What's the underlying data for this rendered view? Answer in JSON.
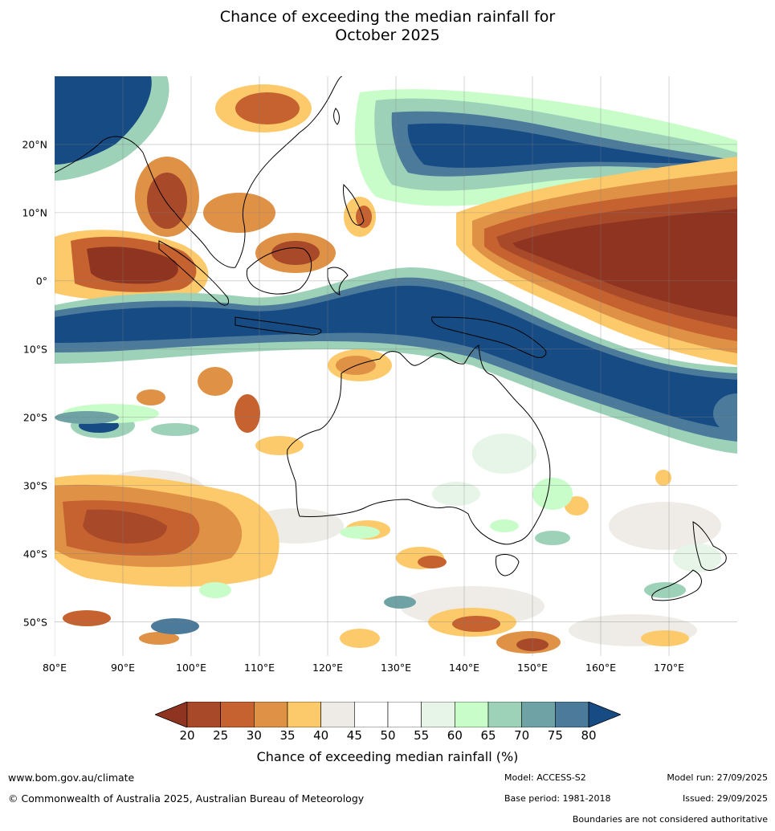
{
  "title": {
    "line1": "Chance of exceeding the median rainfall for",
    "line2": "October 2025"
  },
  "map": {
    "lat_labels": [
      "20°N",
      "10°N",
      "0°",
      "10°S",
      "20°S",
      "30°S",
      "40°S",
      "50°S"
    ],
    "lat_values": [
      20,
      10,
      0,
      -10,
      -20,
      -30,
      -40,
      -50
    ],
    "lon_labels": [
      "80°E",
      "90°E",
      "100°E",
      "110°E",
      "120°E",
      "130°E",
      "140°E",
      "150°E",
      "160°E",
      "170°E"
    ],
    "lon_values": [
      80,
      90,
      100,
      110,
      120,
      130,
      140,
      150,
      160,
      170
    ],
    "lon_range": [
      80,
      180
    ],
    "lat_range": [
      -55,
      30
    ]
  },
  "colorbar": {
    "ticks": [
      "20",
      "25",
      "30",
      "35",
      "40",
      "45",
      "50",
      "55",
      "60",
      "65",
      "70",
      "75",
      "80"
    ],
    "colors": [
      "#8e3420",
      "#a8492a",
      "#c5622f",
      "#df9146",
      "#fdca6b",
      "#eeebe6",
      "#ffffff",
      "#ffffff",
      "#e6f5e7",
      "#c8fdca",
      "#9dd2b9",
      "#6ea2a5",
      "#4b7a9a",
      "#174b84"
    ],
    "title": "Chance of exceeding median rainfall (%)"
  },
  "footer": {
    "url": "www.bom.gov.au/climate",
    "copyright": "© Commonwealth of Australia 2025, Australian Bureau of Meteorology",
    "model": "Model: ACCESS-S2",
    "base_period": "Base period: 1981-2018",
    "model_run": "Model run: 27/09/2025",
    "issued": "Issued: 29/09/2025",
    "disclaimer": "Boundaries are not considered authoritative"
  }
}
